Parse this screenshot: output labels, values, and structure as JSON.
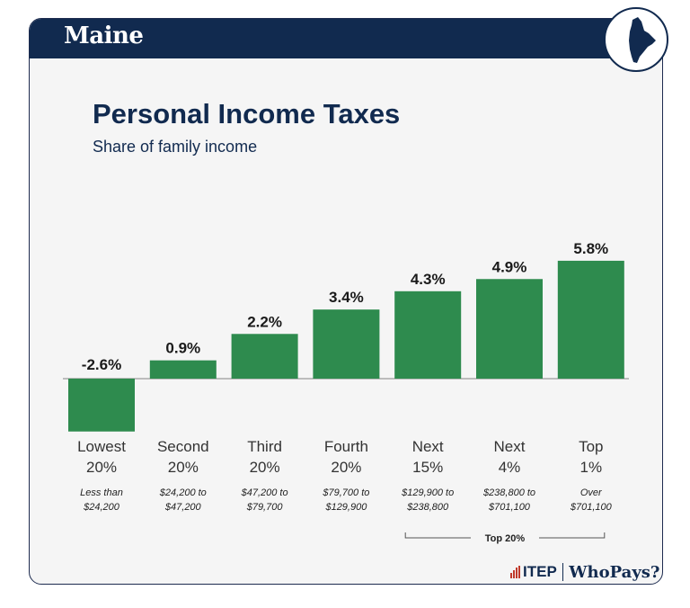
{
  "header": {
    "state": "Maine",
    "title": "Personal Income Taxes",
    "subtitle": "Share of family income"
  },
  "colors": {
    "banner": "#112a4f",
    "bar": "#2e8b4e",
    "text": "#1a1a1a",
    "axis": "#9a9a9a"
  },
  "icons": {
    "state_outline": "maine-map-icon",
    "logo_mark": "itep-bars-icon"
  },
  "chart_data": {
    "type": "bar",
    "title": "Personal Income Taxes",
    "subtitle": "Share of family income",
    "categories": [
      {
        "line1": "Lowest",
        "line2": "20%",
        "range1": "Less than",
        "range2": "$24,200"
      },
      {
        "line1": "Second",
        "line2": "20%",
        "range1": "$24,200 to",
        "range2": "$47,200"
      },
      {
        "line1": "Third",
        "line2": "20%",
        "range1": "$47,200 to",
        "range2": "$79,700"
      },
      {
        "line1": "Fourth",
        "line2": "20%",
        "range1": "$79,700 to",
        "range2": "$129,900"
      },
      {
        "line1": "Next",
        "line2": "15%",
        "range1": "$129,900 to",
        "range2": "$238,800"
      },
      {
        "line1": "Next",
        "line2": "4%",
        "range1": "$238,800 to",
        "range2": "$701,100"
      },
      {
        "line1": "Top",
        "line2": "1%",
        "range1": "Over",
        "range2": "$701,100"
      }
    ],
    "values": [
      -2.6,
      0.9,
      2.2,
      3.4,
      4.3,
      4.9,
      5.8
    ],
    "labels": [
      "-2.6%",
      "0.9%",
      "2.2%",
      "3.4%",
      "4.3%",
      "4.9%",
      "5.8%"
    ],
    "ylim": [
      -2.6,
      5.8
    ],
    "grid": false,
    "bracket": {
      "label": "Top 20%",
      "from_index": 4,
      "to_index": 6
    }
  },
  "footer": {
    "logo_itep": "ITEP",
    "logo_whopays": "WhoPays?"
  }
}
